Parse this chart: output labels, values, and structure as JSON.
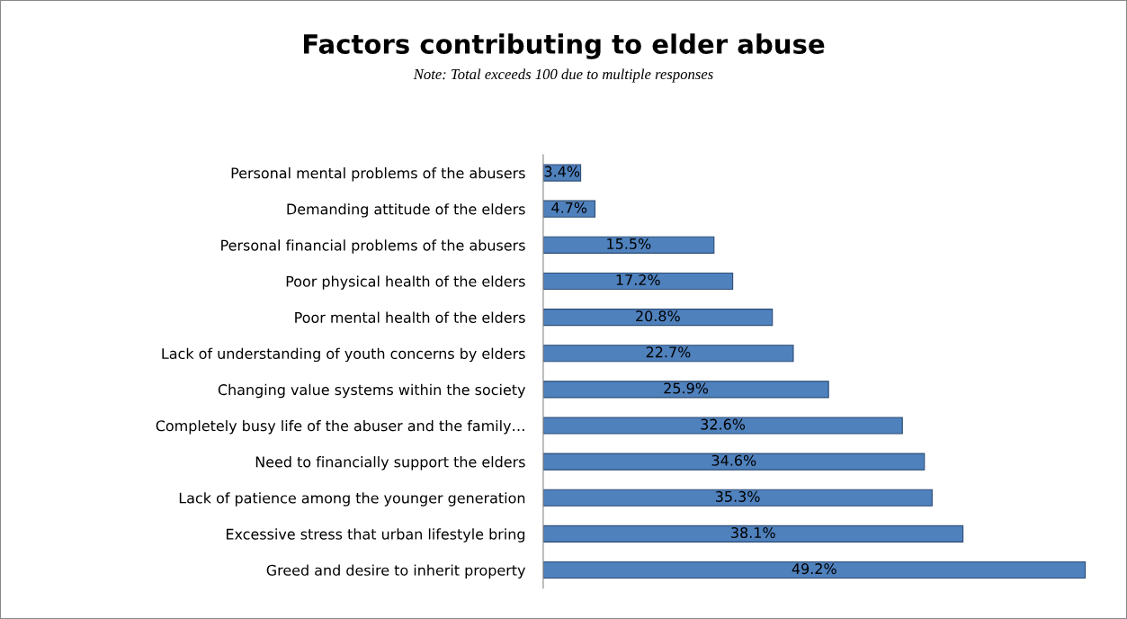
{
  "chart_data": {
    "type": "bar",
    "orientation": "horizontal",
    "title": "Factors contributing to elder abuse",
    "subtitle": "Note: Total exceeds 100 due to multiple responses",
    "categories": [
      "Personal mental problems of the abusers",
      "Demanding attitude of the elders",
      "Personal financial problems of the abusers",
      "Poor physical health of the elders",
      "Poor mental health of the elders",
      "Lack of understanding of youth concerns by elders",
      "Changing value systems within the society",
      "Completely busy life of the abuser and the family…",
      "Need to financially support the elders",
      "Lack of patience among the younger generation",
      "Excessive stress that urban lifestyle bring",
      "Greed and desire to inherit property"
    ],
    "values": [
      3.4,
      4.7,
      15.5,
      17.2,
      20.8,
      22.7,
      25.9,
      32.6,
      34.6,
      35.3,
      38.1,
      49.2
    ],
    "value_labels": [
      "3.4%",
      "4.7%",
      "15.5%",
      "17.2%",
      "20.8%",
      "22.7%",
      "25.9%",
      "32.6%",
      "34.6%",
      "35.3%",
      "38.1%",
      "49.2%"
    ],
    "color": "#4f81bd",
    "grid": false,
    "legend": false
  }
}
